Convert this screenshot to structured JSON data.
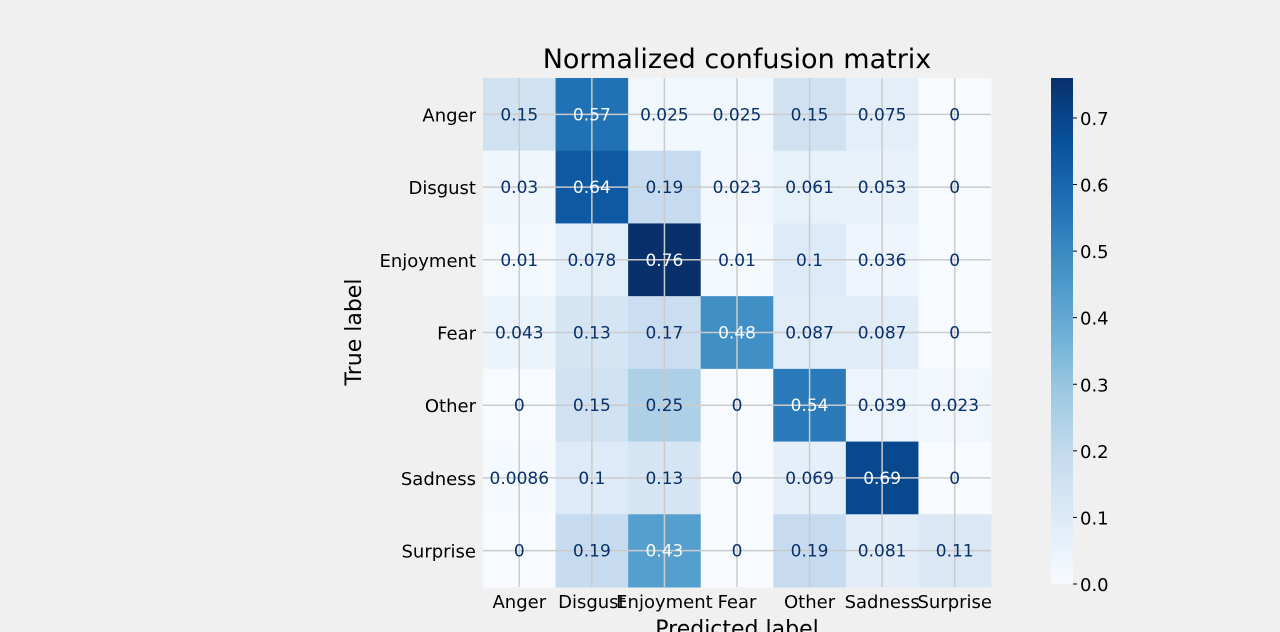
{
  "chart_data": {
    "type": "heatmap",
    "title": "Normalized confusion matrix",
    "xlabel": "Predicted label",
    "ylabel": "True label",
    "x_categories": [
      "Anger",
      "Disgust",
      "Enjoyment",
      "Fear",
      "Other",
      "Sadness",
      "Surprise"
    ],
    "y_categories": [
      "Anger",
      "Disgust",
      "Enjoyment",
      "Fear",
      "Other",
      "Sadness",
      "Surprise"
    ],
    "values": [
      [
        0.15,
        0.57,
        0.025,
        0.025,
        0.15,
        0.075,
        0
      ],
      [
        0.03,
        0.64,
        0.19,
        0.023,
        0.061,
        0.053,
        0
      ],
      [
        0.01,
        0.078,
        0.76,
        0.01,
        0.1,
        0.036,
        0
      ],
      [
        0.043,
        0.13,
        0.17,
        0.48,
        0.087,
        0.087,
        0
      ],
      [
        0,
        0.15,
        0.25,
        0,
        0.54,
        0.039,
        0.023
      ],
      [
        0.0086,
        0.1,
        0.13,
        0,
        0.069,
        0.69,
        0
      ],
      [
        0,
        0.19,
        0.43,
        0,
        0.19,
        0.081,
        0.11
      ]
    ],
    "cell_labels": [
      [
        "0.15",
        "0.57",
        "0.025",
        "0.025",
        "0.15",
        "0.075",
        "0"
      ],
      [
        "0.03",
        "0.64",
        "0.19",
        "0.023",
        "0.061",
        "0.053",
        "0"
      ],
      [
        "0.01",
        "0.078",
        "0.76",
        "0.01",
        "0.1",
        "0.036",
        "0"
      ],
      [
        "0.043",
        "0.13",
        "0.17",
        "0.48",
        "0.087",
        "0.087",
        "0"
      ],
      [
        "0",
        "0.15",
        "0.25",
        "0",
        "0.54",
        "0.039",
        "0.023"
      ],
      [
        "0.0086",
        "0.1",
        "0.13",
        "0",
        "0.069",
        "0.69",
        "0"
      ],
      [
        "0",
        "0.19",
        "0.43",
        "0",
        "0.19",
        "0.081",
        "0.11"
      ]
    ],
    "colorbar": {
      "range": [
        0,
        0.76
      ],
      "ticks": [
        0.0,
        0.1,
        0.2,
        0.3,
        0.4,
        0.5,
        0.6,
        0.7
      ],
      "tick_labels": [
        "0.0",
        "0.1",
        "0.2",
        "0.3",
        "0.4",
        "0.5",
        "0.6",
        "0.7"
      ]
    },
    "colormap": "Blues",
    "grid": true
  },
  "colors": {
    "background": "#f0f0f0",
    "grid": "#cbcbcb",
    "text": "#000000",
    "cell_text_dark": "#08306b",
    "cell_text_light": "#f7fbff"
  }
}
